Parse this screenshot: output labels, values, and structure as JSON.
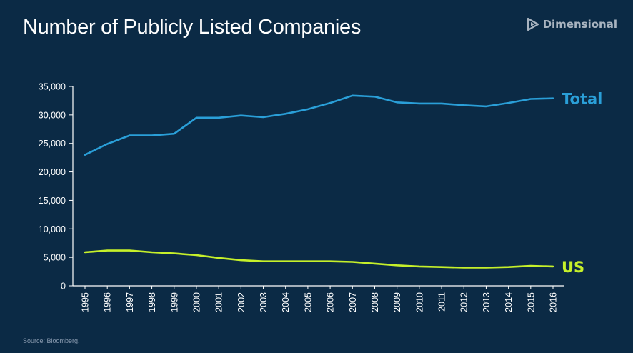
{
  "title": "Number of Publicly Listed Companies",
  "brand": {
    "name": "Dimensional",
    "logo_icon": "dimensional-logo-icon"
  },
  "source": "Source: Bloomberg.",
  "colors": {
    "background": "#0b2a45",
    "total": "#2a9fd8",
    "us": "#c6f02a",
    "axis": "#ffffff"
  },
  "chart_data": {
    "type": "line",
    "title": "Number of Publicly Listed Companies",
    "xlabel": "",
    "ylabel": "",
    "x": [
      "1995",
      "1996",
      "1997",
      "1998",
      "1999",
      "2000",
      "2001",
      "2002",
      "2003",
      "2004",
      "2005",
      "2006",
      "2007",
      "2008",
      "2009",
      "2010",
      "2011",
      "2012",
      "2013",
      "2014",
      "2015",
      "2016"
    ],
    "ylim": [
      0,
      35000
    ],
    "yticks": [
      0,
      5000,
      10000,
      15000,
      20000,
      25000,
      30000,
      35000
    ],
    "ytick_labels": [
      "0",
      "5,000",
      "10,000",
      "15,000",
      "20,000",
      "25,000",
      "30,000",
      "35,000"
    ],
    "grid": false,
    "legend": "direct labels at right end of lines",
    "series": [
      {
        "name": "Total",
        "color": "#2a9fd8",
        "values": [
          23000,
          24900,
          26400,
          26400,
          26700,
          29500,
          29500,
          29900,
          29600,
          30200,
          31000,
          32100,
          33400,
          33200,
          32200,
          32000,
          32000,
          31700,
          31500,
          32100,
          32800,
          32900
        ]
      },
      {
        "name": "US",
        "color": "#c6f02a",
        "values": [
          5900,
          6200,
          6200,
          5900,
          5700,
          5400,
          4900,
          4500,
          4300,
          4300,
          4300,
          4300,
          4200,
          3900,
          3600,
          3400,
          3300,
          3200,
          3200,
          3300,
          3500,
          3400
        ]
      }
    ]
  }
}
